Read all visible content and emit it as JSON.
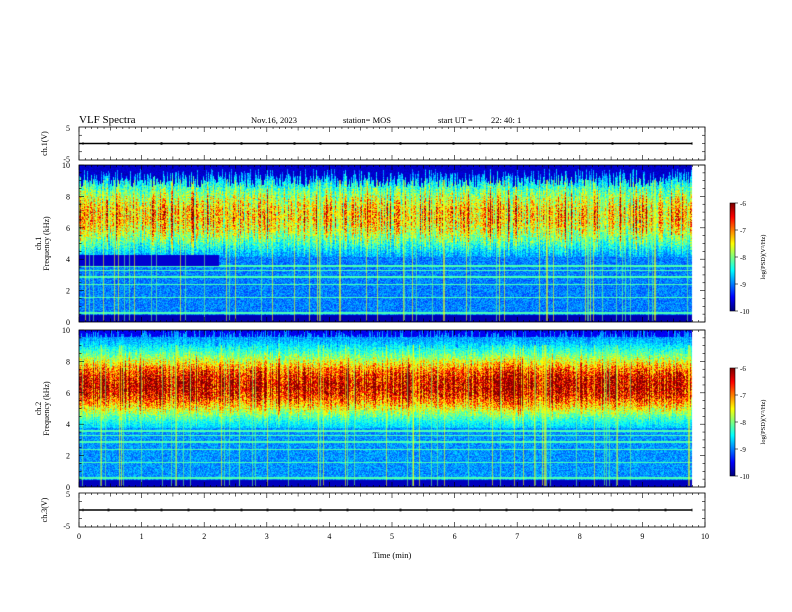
{
  "header": {
    "title": "VLF Spectra",
    "date": "Nov.16, 2023",
    "station": "station= MOS",
    "start_label": "start  UT  =",
    "start_time": "22: 40: 1"
  },
  "chart_data": [
    {
      "type": "line",
      "panel": "ch1-waveform",
      "ylabel": "ch.1(V)",
      "ylim": [
        -5,
        5
      ],
      "yticks": [
        "5",
        "-5"
      ],
      "xlim": [
        0,
        10
      ],
      "series": [
        {
          "x": [
            0,
            9.8
          ],
          "y": [
            0,
            0
          ]
        }
      ]
    },
    {
      "type": "heatmap",
      "panel": "ch1-spectrogram",
      "ylabel": "ch.1\nFrequency (kHz)",
      "ylim": [
        0,
        10
      ],
      "yticks": [
        "0",
        "2",
        "4",
        "6",
        "8",
        "10"
      ],
      "xlim": [
        0,
        10
      ],
      "data_end_min": 9.8,
      "colorbar": {
        "label": "log(PSD)(V²/Hz)",
        "range": [
          -10,
          -6
        ],
        "ticks": [
          "-6",
          "-7",
          "-8",
          "-9",
          "-10"
        ]
      }
    },
    {
      "type": "heatmap",
      "panel": "ch2-spectrogram",
      "ylabel": "ch.2\nFrequency (kHz)",
      "ylim": [
        0,
        10
      ],
      "yticks": [
        "0",
        "2",
        "4",
        "6",
        "8",
        "10"
      ],
      "xlim": [
        0,
        10
      ],
      "data_end_min": 9.8,
      "colorbar": {
        "label": "log(PSD)(V²/Hz)",
        "range": [
          -10,
          -6
        ],
        "ticks": [
          "-6",
          "-7",
          "-8",
          "-9",
          "-10"
        ]
      }
    },
    {
      "type": "line",
      "panel": "ch3-waveform",
      "ylabel": "ch.3(V)",
      "ylim": [
        -5,
        5
      ],
      "yticks": [
        "5",
        "-5"
      ],
      "xlim": [
        0,
        10
      ],
      "xlabel": "Time  (min)",
      "xticks": [
        "0",
        "1",
        "2",
        "3",
        "4",
        "5",
        "6",
        "7",
        "8",
        "9",
        "10"
      ],
      "series": [
        {
          "x": [
            0,
            9.8
          ],
          "y": [
            0,
            0
          ]
        }
      ]
    }
  ]
}
